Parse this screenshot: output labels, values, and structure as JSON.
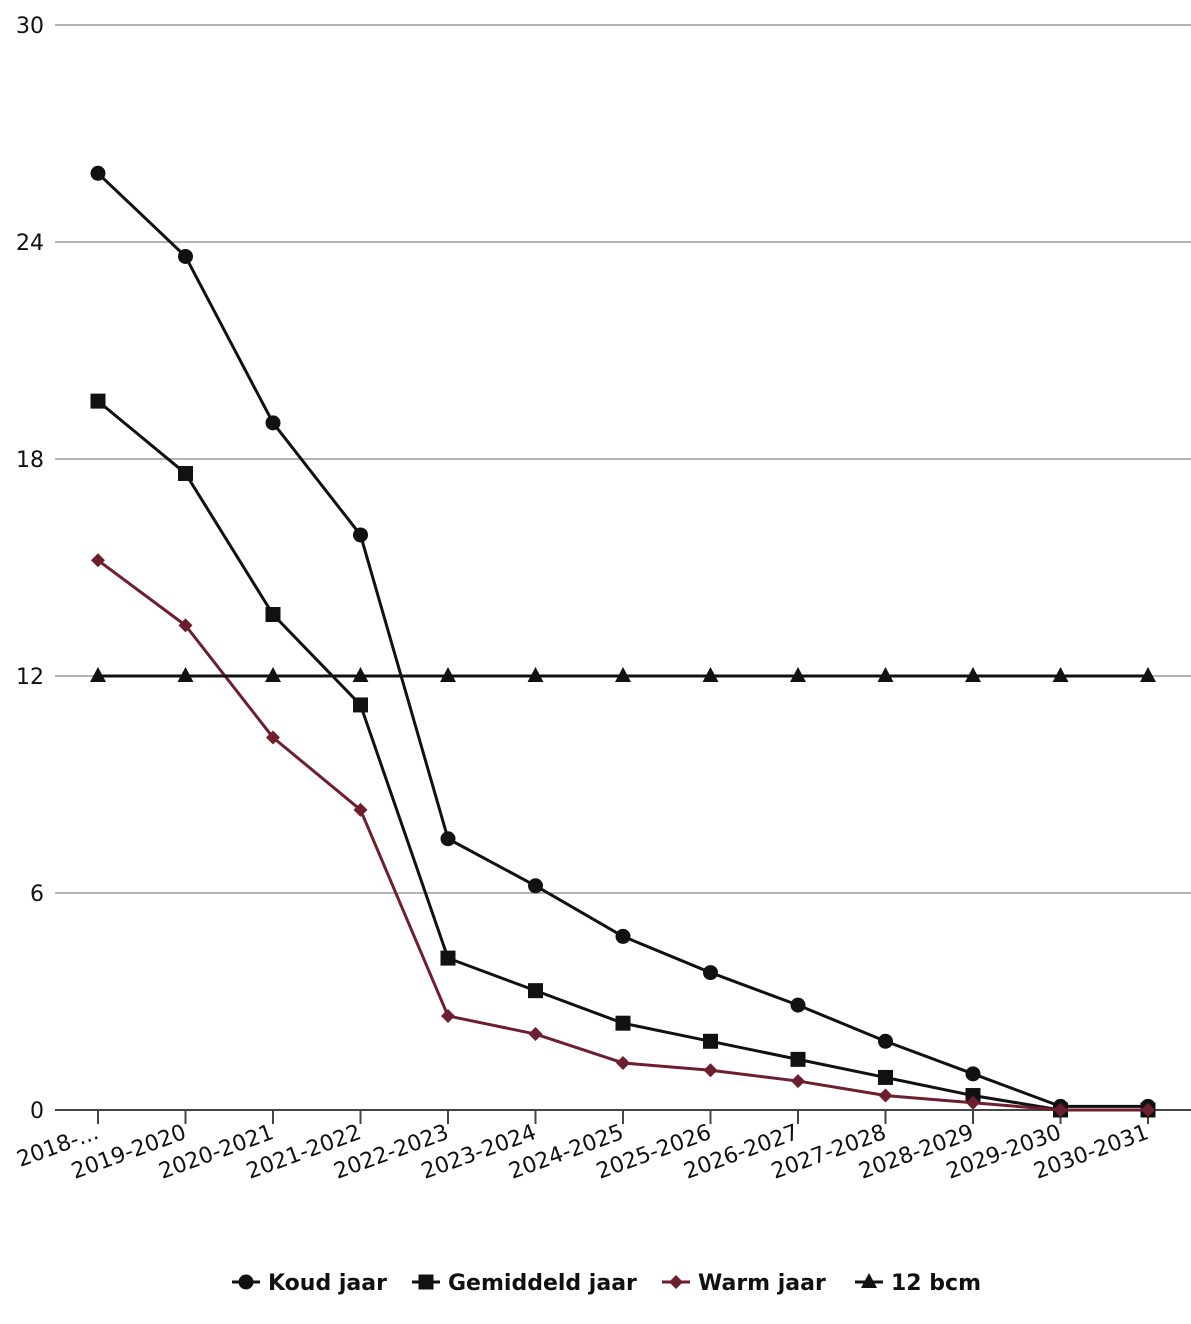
{
  "chart_data": {
    "type": "line",
    "categories": [
      "2018-...",
      "2019-2020",
      "2020-2021",
      "2021-2022",
      "2022-2023",
      "2023-2024",
      "2024-2025",
      "2025-2026",
      "2026-2027",
      "2027-2028",
      "2028-2029",
      "2029-2030",
      "2030-2031"
    ],
    "series": [
      {
        "name": "Koud jaar",
        "marker": "circle",
        "color": "#111111",
        "values": [
          25.9,
          23.6,
          19.0,
          15.9,
          7.5,
          6.2,
          4.8,
          3.8,
          2.9,
          1.9,
          1.0,
          0.1,
          0.1
        ]
      },
      {
        "name": "Gemiddeld jaar",
        "marker": "square",
        "color": "#111111",
        "values": [
          19.6,
          17.6,
          13.7,
          11.2,
          4.2,
          3.3,
          2.4,
          1.9,
          1.4,
          0.9,
          0.4,
          0.0,
          0.0
        ]
      },
      {
        "name": "Warm jaar",
        "marker": "diamond",
        "color": "#6e1f2e",
        "values": [
          15.2,
          13.4,
          10.3,
          8.3,
          2.6,
          2.1,
          1.3,
          1.1,
          0.8,
          0.4,
          0.2,
          0.0,
          0.0
        ]
      },
      {
        "name": "12 bcm",
        "marker": "triangle",
        "color": "#111111",
        "values": [
          12,
          12,
          12,
          12,
          12,
          12,
          12,
          12,
          12,
          12,
          12,
          12,
          12
        ]
      }
    ],
    "y_ticks": [
      "0",
      "6",
      "12",
      "18",
      "24",
      "30"
    ],
    "ylim": [
      0,
      30
    ],
    "grid": true,
    "legend_position": "bottom"
  }
}
